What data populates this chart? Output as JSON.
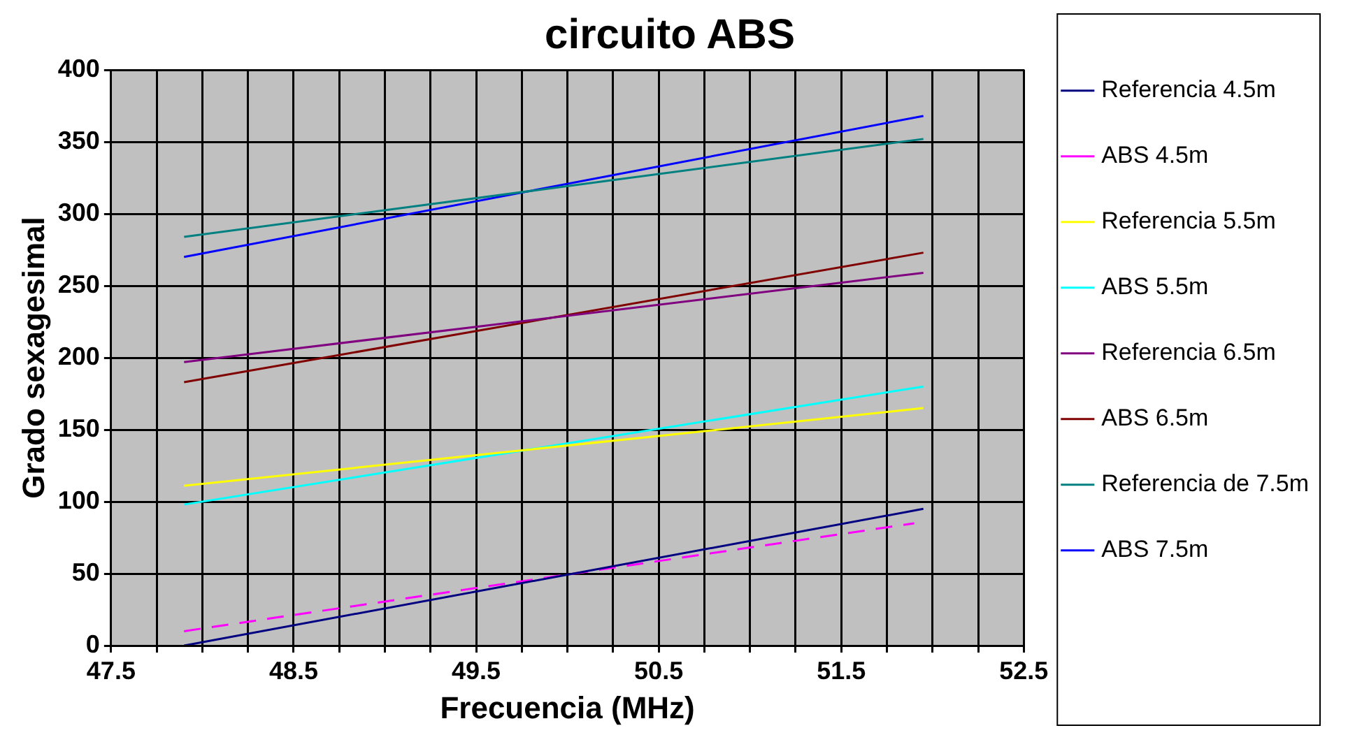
{
  "chart_data": {
    "type": "line",
    "title": "circuito ABS",
    "xlabel": "Frecuencia (MHz)",
    "ylabel": "Grado sexagesimal",
    "x": [
      47.9,
      51.95
    ],
    "series": [
      {
        "name": "Referencia 4.5m",
        "color": "#000080",
        "values": [
          0,
          95
        ]
      },
      {
        "name": "ABS 4.5m",
        "color": "#ff00ff",
        "values": [
          10,
          85
        ],
        "x": [
          47.9,
          51.9
        ],
        "line_style": "dashed"
      },
      {
        "name": "Referencia 5.5m",
        "color": "#ffff00",
        "values": [
          111,
          165
        ]
      },
      {
        "name": "ABS 5.5m",
        "color": "#00ffff",
        "values": [
          98,
          180
        ]
      },
      {
        "name": "Referencia 6.5m",
        "color": "#800080",
        "values": [
          197,
          259
        ]
      },
      {
        "name": "ABS 6.5m",
        "color": "#800000",
        "values": [
          183,
          273
        ]
      },
      {
        "name": "Referencia de 7.5m",
        "color": "#008080",
        "values": [
          284,
          352
        ]
      },
      {
        "name": "ABS 7.5m",
        "color": "#0000ff",
        "values": [
          270,
          368
        ]
      }
    ],
    "xlim": [
      47.5,
      52.5
    ],
    "xticks": [
      47.5,
      {
        "value": 47.75,
        "label": null
      },
      {
        "value": 48,
        "label": null
      },
      {
        "value": 48.25,
        "label": null
      },
      48.5,
      {
        "value": 48.75,
        "label": null
      },
      {
        "value": 49,
        "label": null
      },
      {
        "value": 49.25,
        "label": null
      },
      49.5,
      {
        "value": 49.75,
        "label": null
      },
      {
        "value": 50,
        "label": null
      },
      {
        "value": 50.25,
        "label": null
      },
      50.5,
      {
        "value": 50.75,
        "label": null
      },
      {
        "value": 51,
        "label": null
      },
      {
        "value": 51.25,
        "label": null
      },
      51.5,
      {
        "value": 51.75,
        "label": null
      },
      {
        "value": 52,
        "label": null
      },
      {
        "value": 52.25,
        "label": null
      },
      52.5
    ],
    "ylim": [
      0,
      400
    ],
    "yticks": [
      0,
      50,
      100,
      150,
      200,
      250,
      300,
      350,
      400
    ],
    "grid": true,
    "legend": "right",
    "marker": "none",
    "line_style": "solid"
  }
}
